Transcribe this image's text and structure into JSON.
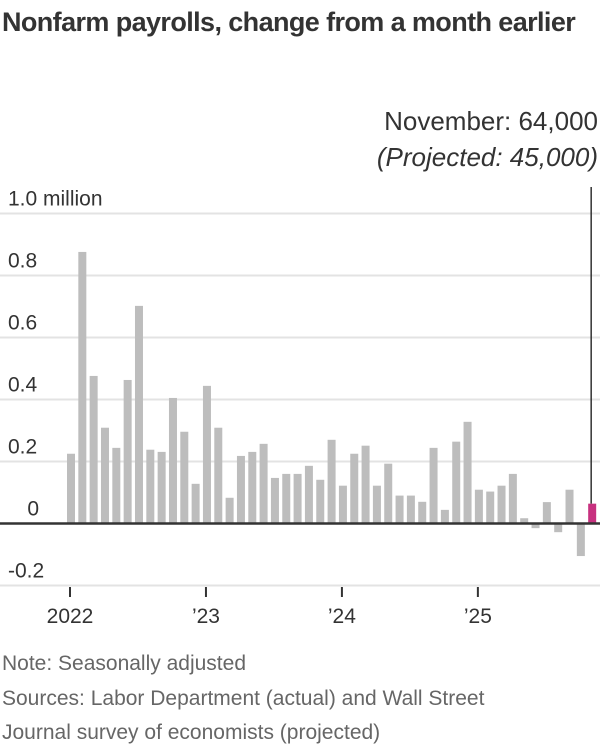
{
  "header": {
    "title": "Nonfarm payrolls, change from a month earlier"
  },
  "annotation": {
    "line1": "November: 64,000",
    "line2": "(Projected: 45,000)"
  },
  "footer": {
    "note": "Note: Seasonally adjusted",
    "sources_line1": "Sources: Labor Department (actual) and Wall Street",
    "sources_line2": "Journal survey of economists (projected)"
  },
  "colors": {
    "bar": "#bdbdbd",
    "highlight": "#c7317f",
    "grid": "#e3e3e3",
    "axis": "#333333"
  },
  "chart_data": {
    "type": "bar",
    "title": "Nonfarm payrolls, change from a month earlier",
    "xlabel": "",
    "ylabel": "",
    "unit": "million jobs",
    "ylim": [
      -0.2,
      1.0
    ],
    "yticks": [
      -0.2,
      0,
      0.2,
      0.4,
      0.6,
      0.8,
      1.0
    ],
    "ytick_labels": [
      "-0.2",
      "0",
      "0.2",
      "0.4",
      "0.6",
      "0.8",
      "1.0 million"
    ],
    "xticks": [
      {
        "label": "2022",
        "index": 0
      },
      {
        "label": "’23",
        "index": 12
      },
      {
        "label": "’24",
        "index": 24
      },
      {
        "label": "’25",
        "index": 36
      }
    ],
    "grid": true,
    "legend": null,
    "categories": [
      "2022-01",
      "2022-02",
      "2022-03",
      "2022-04",
      "2022-05",
      "2022-06",
      "2022-07",
      "2022-08",
      "2022-09",
      "2022-10",
      "2022-11",
      "2022-12",
      "2023-01",
      "2023-02",
      "2023-03",
      "2023-04",
      "2023-05",
      "2023-06",
      "2023-07",
      "2023-08",
      "2023-09",
      "2023-10",
      "2023-11",
      "2023-12",
      "2024-01",
      "2024-02",
      "2024-03",
      "2024-04",
      "2024-05",
      "2024-06",
      "2024-07",
      "2024-08",
      "2024-09",
      "2024-10",
      "2024-11",
      "2024-12",
      "2025-01",
      "2025-02",
      "2025-03",
      "2025-04",
      "2025-05",
      "2025-06",
      "2025-07",
      "2025-08",
      "2025-09",
      "2025-10",
      "2025-11"
    ],
    "values": [
      0.225,
      0.876,
      0.476,
      0.309,
      0.244,
      0.463,
      0.702,
      0.238,
      0.231,
      0.405,
      0.296,
      0.128,
      0.444,
      0.309,
      0.083,
      0.218,
      0.231,
      0.257,
      0.147,
      0.16,
      0.16,
      0.186,
      0.141,
      0.27,
      0.122,
      0.225,
      0.251,
      0.122,
      0.193,
      0.09,
      0.09,
      0.07,
      0.244,
      0.044,
      0.264,
      0.328,
      0.109,
      0.103,
      0.122,
      0.16,
      0.017,
      -0.015,
      0.069,
      -0.028,
      0.109,
      -0.105,
      0.064
    ],
    "highlight_index": 46,
    "annotations": [
      {
        "text": "November: 64,000",
        "target": "2025-11"
      },
      {
        "text": "(Projected: 45,000)",
        "target": "2025-11"
      }
    ]
  }
}
